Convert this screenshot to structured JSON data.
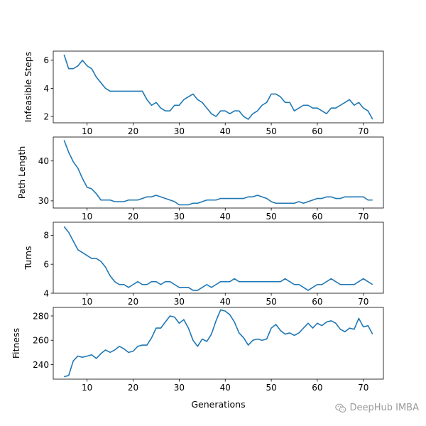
{
  "chart_data": [
    {
      "type": "line",
      "ylabel": "Infeasible Steps",
      "xlabel": "",
      "yticks": [
        "2",
        "4",
        "6"
      ],
      "xticks": [
        "10",
        "20",
        "30",
        "40",
        "50",
        "60",
        "70"
      ],
      "xlim": [
        2.65,
        74.35
      ],
      "ylim": [
        1.55,
        6.65
      ],
      "color": "#1f77b4",
      "x": [
        5,
        6,
        7,
        8,
        9,
        10,
        11,
        12,
        13,
        14,
        15,
        16,
        17,
        18,
        19,
        20,
        21,
        22,
        23,
        24,
        25,
        26,
        27,
        28,
        29,
        30,
        31,
        32,
        33,
        34,
        35,
        36,
        37,
        38,
        39,
        40,
        41,
        42,
        43,
        44,
        45,
        46,
        47,
        48,
        49,
        50,
        51,
        52,
        53,
        54,
        55,
        56,
        57,
        58,
        59,
        60,
        61,
        62,
        63,
        64,
        65,
        66,
        67,
        68,
        69,
        70,
        71,
        72
      ],
      "y": [
        6.4,
        5.4,
        5.4,
        5.6,
        6.0,
        5.6,
        5.4,
        4.8,
        4.4,
        4.0,
        3.8,
        3.8,
        3.8,
        3.8,
        3.8,
        3.8,
        3.8,
        3.8,
        3.2,
        2.8,
        3.0,
        2.6,
        2.4,
        2.4,
        2.8,
        2.8,
        3.2,
        3.4,
        3.6,
        3.2,
        3.0,
        2.6,
        2.2,
        2.0,
        2.4,
        2.4,
        2.2,
        2.4,
        2.4,
        2.0,
        1.8,
        2.2,
        2.4,
        2.8,
        3.0,
        3.6,
        3.6,
        3.4,
        3.0,
        3.0,
        2.4,
        2.6,
        2.8,
        2.8,
        2.6,
        2.6,
        2.4,
        2.2,
        2.6,
        2.6,
        2.8,
        3.0,
        3.2,
        2.8,
        3.0,
        2.6,
        2.4,
        1.8
      ]
    },
    {
      "type": "line",
      "ylabel": "Path Length",
      "xlabel": "",
      "yticks": [
        "30",
        "40"
      ],
      "xticks": [
        "10",
        "20",
        "30",
        "40",
        "50",
        "60",
        "70"
      ],
      "xlim": [
        2.65,
        74.35
      ],
      "ylim": [
        28.2,
        46.0
      ],
      "color": "#1f77b4",
      "x": [
        5,
        6,
        7,
        8,
        9,
        10,
        11,
        12,
        13,
        14,
        15,
        16,
        17,
        18,
        19,
        20,
        21,
        22,
        23,
        24,
        25,
        26,
        27,
        28,
        29,
        30,
        31,
        32,
        33,
        34,
        35,
        36,
        37,
        38,
        39,
        40,
        41,
        42,
        43,
        44,
        45,
        46,
        47,
        48,
        49,
        50,
        51,
        52,
        53,
        54,
        55,
        56,
        57,
        58,
        59,
        60,
        61,
        62,
        63,
        64,
        65,
        66,
        67,
        68,
        69,
        70,
        71,
        72
      ],
      "y": [
        45.2,
        42.2,
        39.8,
        38.2,
        35.6,
        33.4,
        33.0,
        31.8,
        30.2,
        30.2,
        30.2,
        29.8,
        29.8,
        29.8,
        30.2,
        30.2,
        30.2,
        30.6,
        31.0,
        31.0,
        31.4,
        31.0,
        30.6,
        30.2,
        29.8,
        29.0,
        29.0,
        29.0,
        29.4,
        29.4,
        29.8,
        30.2,
        30.2,
        30.2,
        30.6,
        30.6,
        30.6,
        30.6,
        30.6,
        30.6,
        31.0,
        31.0,
        31.4,
        31.0,
        30.6,
        29.8,
        29.4,
        29.4,
        29.4,
        29.4,
        29.4,
        29.8,
        29.4,
        29.8,
        30.2,
        30.6,
        30.6,
        31.0,
        31.0,
        30.6,
        30.6,
        31.0,
        31.0,
        31.0,
        31.0,
        31.0,
        30.2,
        30.2
      ]
    },
    {
      "type": "line",
      "ylabel": "Turns",
      "xlabel": "",
      "yticks": [
        "4",
        "6",
        "8"
      ],
      "xticks": [
        "10",
        "20",
        "30",
        "40",
        "50",
        "60",
        "70"
      ],
      "xlim": [
        2.65,
        74.35
      ],
      "ylim": [
        4.0,
        8.9
      ],
      "color": "#1f77b4",
      "x": [
        5,
        6,
        7,
        8,
        9,
        10,
        11,
        12,
        13,
        14,
        15,
        16,
        17,
        18,
        19,
        20,
        21,
        22,
        23,
        24,
        25,
        26,
        27,
        28,
        29,
        30,
        31,
        32,
        33,
        34,
        35,
        36,
        37,
        38,
        39,
        40,
        41,
        42,
        43,
        44,
        45,
        46,
        47,
        48,
        49,
        50,
        51,
        52,
        53,
        54,
        55,
        56,
        57,
        58,
        59,
        60,
        61,
        62,
        63,
        64,
        65,
        66,
        67,
        68,
        69,
        70,
        71,
        72
      ],
      "y": [
        8.6,
        8.2,
        7.6,
        7.0,
        6.8,
        6.6,
        6.4,
        6.4,
        6.2,
        5.8,
        5.2,
        4.8,
        4.6,
        4.6,
        4.4,
        4.6,
        4.8,
        4.6,
        4.6,
        4.8,
        4.8,
        4.6,
        4.8,
        4.8,
        4.6,
        4.4,
        4.4,
        4.4,
        4.2,
        4.2,
        4.4,
        4.6,
        4.4,
        4.6,
        4.8,
        4.8,
        4.8,
        5.0,
        4.8,
        4.8,
        4.8,
        4.8,
        4.8,
        4.8,
        4.8,
        4.8,
        4.8,
        4.8,
        5.0,
        4.8,
        4.6,
        4.6,
        4.4,
        4.2,
        4.4,
        4.6,
        4.6,
        4.8,
        5.0,
        4.8,
        4.6,
        4.6,
        4.6,
        4.6,
        4.8,
        5.0,
        4.8,
        4.6
      ]
    },
    {
      "type": "line",
      "ylabel": "Fitness",
      "xlabel": "Generations",
      "yticks": [
        "240",
        "260",
        "280"
      ],
      "xticks": [
        "10",
        "20",
        "30",
        "40",
        "50",
        "60",
        "70"
      ],
      "xlim": [
        2.65,
        74.35
      ],
      "ylim": [
        228.0,
        287.0
      ],
      "color": "#1f77b4",
      "x": [
        5,
        6,
        7,
        8,
        9,
        10,
        11,
        12,
        13,
        14,
        15,
        16,
        17,
        18,
        19,
        20,
        21,
        22,
        23,
        24,
        25,
        26,
        27,
        28,
        29,
        30,
        31,
        32,
        33,
        34,
        35,
        36,
        37,
        38,
        39,
        40,
        41,
        42,
        43,
        44,
        45,
        46,
        47,
        48,
        49,
        50,
        51,
        52,
        53,
        54,
        55,
        56,
        57,
        58,
        59,
        60,
        61,
        62,
        63,
        64,
        65,
        66,
        67,
        68,
        69,
        70,
        71,
        72
      ],
      "y": [
        230,
        231,
        243,
        247,
        246,
        247,
        248,
        245,
        249,
        252,
        250,
        252,
        255,
        253,
        250,
        251,
        255,
        256,
        256,
        262,
        270,
        270,
        275,
        280,
        279,
        274,
        277,
        270,
        260,
        255,
        261,
        259,
        265,
        276,
        285,
        284,
        281,
        275,
        266,
        262,
        256,
        260,
        261,
        260,
        261,
        270,
        273,
        268,
        265,
        266,
        264,
        266,
        270,
        274,
        270,
        274,
        272,
        275,
        276,
        274,
        269,
        267,
        270,
        269,
        278,
        271,
        272,
        265
      ]
    }
  ],
  "watermark": {
    "text": "DeepHub IMBA",
    "icon": "wechat-icon"
  }
}
